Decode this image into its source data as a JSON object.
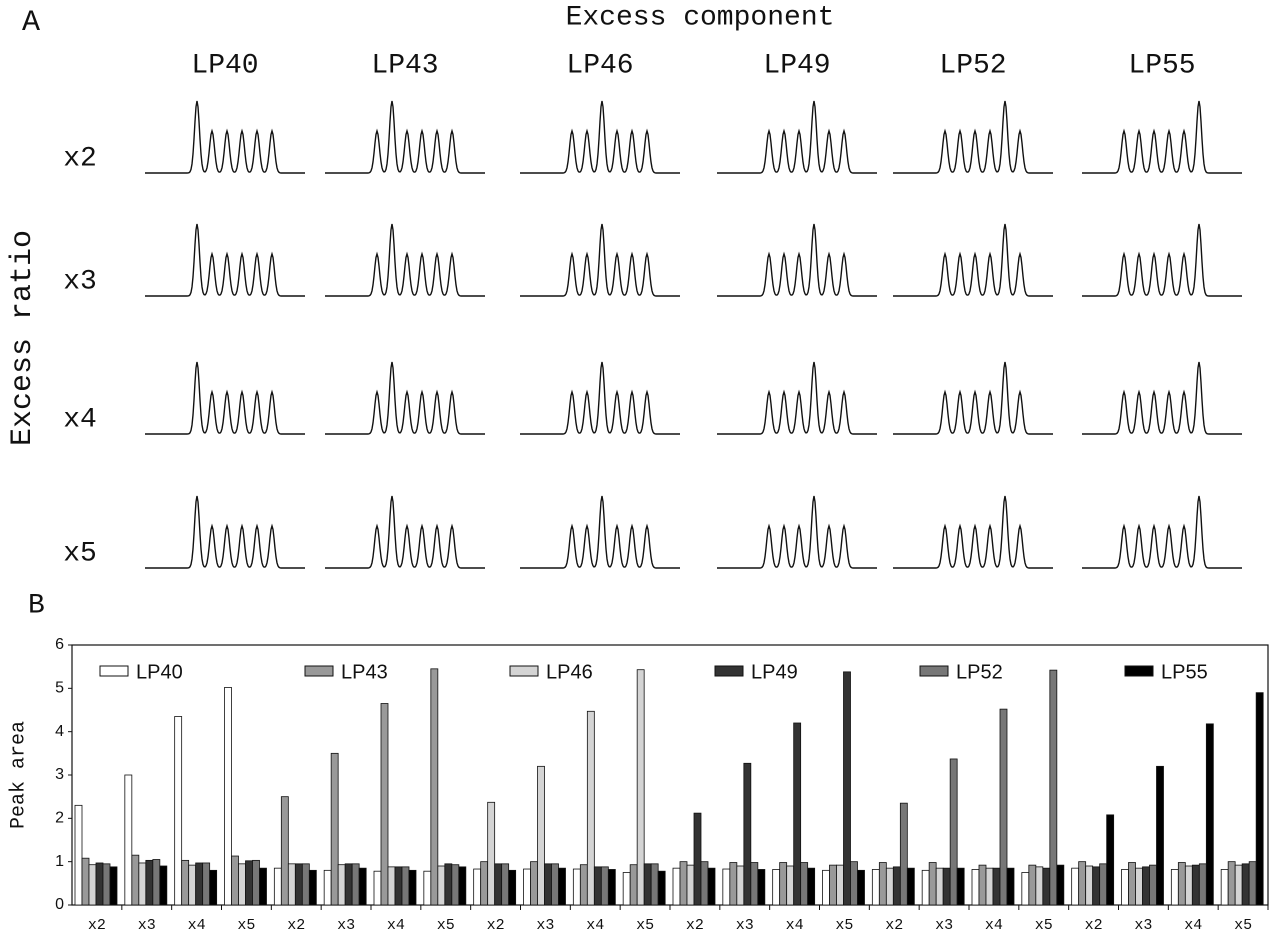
{
  "panel_a": {
    "panel_label": "A",
    "title": "Excess component",
    "ylabel": "Excess ratio",
    "columns": [
      "LP40",
      "LP43",
      "LP46",
      "LP49",
      "LP52",
      "LP55"
    ],
    "rows": [
      "x2",
      "x3",
      "x4",
      "x5"
    ]
  },
  "chart_data": {
    "type": "bar",
    "panel_label": "B",
    "ylabel": "Peak area",
    "categories": [
      "x2",
      "x3",
      "x4",
      "x5",
      "x2",
      "x3",
      "x4",
      "x5",
      "x2",
      "x3",
      "x4",
      "x5",
      "x2",
      "x3",
      "x4",
      "x5",
      "x2",
      "x3",
      "x4",
      "x5",
      "x2",
      "x3",
      "x4",
      "x5"
    ],
    "series": [
      {
        "name": "LP40",
        "color": "#ffffff",
        "values": [
          2.3,
          3.0,
          4.35,
          5.02,
          0.85,
          0.8,
          0.78,
          0.78,
          0.83,
          0.83,
          0.83,
          0.75,
          0.85,
          0.83,
          0.82,
          0.8,
          0.82,
          0.8,
          0.82,
          0.75,
          0.85,
          0.82,
          0.82,
          0.82
        ]
      },
      {
        "name": "LP43",
        "color": "#999999",
        "values": [
          1.08,
          1.15,
          1.03,
          1.13,
          2.5,
          3.5,
          4.65,
          5.45,
          1.0,
          1.0,
          0.93,
          0.93,
          1.0,
          0.98,
          0.98,
          0.92,
          0.98,
          0.98,
          0.92,
          0.92,
          1.0,
          0.98,
          0.98,
          1.0
        ]
      },
      {
        "name": "LP46",
        "color": "#d4d4d4",
        "values": [
          0.93,
          0.97,
          0.92,
          0.95,
          0.95,
          0.93,
          0.88,
          0.9,
          2.37,
          3.2,
          4.47,
          5.43,
          0.92,
          0.9,
          0.9,
          0.92,
          0.85,
          0.85,
          0.85,
          0.88,
          0.9,
          0.85,
          0.9,
          0.92
        ]
      },
      {
        "name": "LP49",
        "color": "#333333",
        "values": [
          0.97,
          1.03,
          0.97,
          1.02,
          0.95,
          0.95,
          0.88,
          0.95,
          0.95,
          0.95,
          0.88,
          0.95,
          2.12,
          3.27,
          4.2,
          5.38,
          0.88,
          0.85,
          0.85,
          0.85,
          0.88,
          0.88,
          0.92,
          0.95
        ]
      },
      {
        "name": "LP52",
        "color": "#777777",
        "values": [
          0.95,
          1.05,
          0.97,
          1.03,
          0.95,
          0.95,
          0.88,
          0.93,
          0.95,
          0.95,
          0.88,
          0.95,
          1.0,
          0.98,
          0.98,
          1.0,
          2.35,
          3.37,
          4.52,
          5.42,
          0.95,
          0.92,
          0.95,
          1.0
        ]
      },
      {
        "name": "LP55",
        "color": "#000000",
        "values": [
          0.88,
          0.9,
          0.8,
          0.85,
          0.8,
          0.85,
          0.8,
          0.88,
          0.8,
          0.85,
          0.82,
          0.78,
          0.85,
          0.82,
          0.85,
          0.8,
          0.85,
          0.85,
          0.85,
          0.92,
          2.08,
          3.2,
          4.18,
          4.9
        ]
      }
    ],
    "ylim": [
      0,
      6
    ],
    "yticks": [
      0,
      1,
      2,
      3,
      4,
      5,
      6
    ]
  }
}
